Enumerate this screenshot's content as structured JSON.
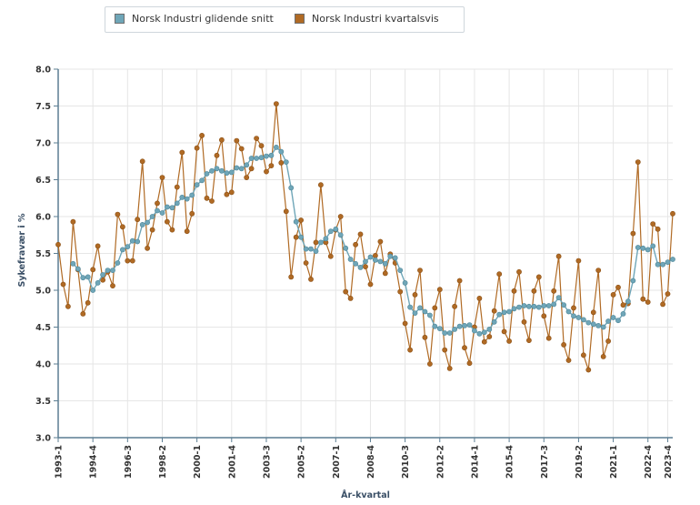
{
  "legend": {
    "items": [
      {
        "label": "Norsk Industri glidende snitt",
        "color": "#6fa6b8"
      },
      {
        "label": "Norsk Industri kvartalsvis",
        "color": "#b06a24"
      }
    ]
  },
  "chart_data": {
    "type": "line",
    "xlabel": "År-kvartal",
    "ylabel": "Sykefravær i %",
    "ylim": [
      3.0,
      8.0
    ],
    "yticks": [
      "3.0",
      "3.5",
      "4.0",
      "4.5",
      "5.0",
      "5.5",
      "6.0",
      "6.5",
      "7.0",
      "7.5",
      "8.0"
    ],
    "xtick_labels": [
      "1993-1",
      "1994-4",
      "1996-3",
      "1998-2",
      "2000-1",
      "2001-4",
      "2003-3",
      "2005-2",
      "2007-1",
      "2008-4",
      "2010-3",
      "2012-2",
      "2014-1",
      "2015-4",
      "2017-3",
      "2019-2",
      "2021-1",
      "2022-4",
      "2023-4"
    ],
    "grid": true,
    "legend_position": "top-left",
    "x_start": "1993-1",
    "series": [
      {
        "name": "Norsk Industri kvartalsvis",
        "color": "#b06a24",
        "values": [
          5.62,
          5.08,
          4.78,
          5.93,
          5.28,
          4.68,
          4.83,
          5.28,
          5.6,
          5.14,
          5.25,
          5.06,
          6.03,
          5.86,
          5.4,
          5.4,
          5.96,
          6.75,
          5.57,
          5.82,
          6.18,
          6.53,
          5.93,
          5.82,
          6.4,
          6.87,
          5.8,
          6.04,
          6.93,
          7.1,
          6.25,
          6.21,
          6.83,
          7.04,
          6.3,
          6.33,
          7.03,
          6.92,
          6.53,
          6.65,
          7.06,
          6.96,
          6.61,
          6.69,
          7.53,
          6.73,
          6.07,
          5.18,
          5.72,
          5.95,
          5.37,
          5.15,
          5.65,
          6.43,
          5.65,
          5.46,
          5.82,
          6.0,
          4.98,
          4.89,
          5.62,
          5.76,
          5.32,
          5.08,
          5.47,
          5.66,
          5.23,
          5.49,
          5.37,
          4.98,
          4.55,
          4.19,
          4.94,
          5.27,
          4.36,
          4.0,
          4.76,
          5.01,
          4.19,
          3.94,
          4.78,
          5.13,
          4.22,
          4.01,
          4.5,
          4.89,
          4.3,
          4.37,
          4.72,
          5.22,
          4.44,
          4.31,
          4.99,
          5.25,
          4.57,
          4.32,
          4.99,
          5.18,
          4.65,
          4.35,
          4.99,
          5.46,
          4.26,
          4.05,
          4.76,
          5.4,
          4.12,
          3.92,
          4.7,
          5.27,
          4.1,
          4.31,
          4.94,
          5.04,
          4.8,
          4.82,
          5.77,
          6.74,
          4.88,
          4.84,
          5.9,
          5.83,
          4.81,
          4.95,
          6.04
        ]
      },
      {
        "name": "Norsk Industri glidende snitt",
        "color": "#6fa6b8",
        "values": [
          null,
          null,
          null,
          5.36,
          5.29,
          5.17,
          5.18,
          5.0,
          5.1,
          5.21,
          5.27,
          5.27,
          5.37,
          5.55,
          5.59,
          5.67,
          5.66,
          5.89,
          5.92,
          6.0,
          6.08,
          6.05,
          6.13,
          6.12,
          6.18,
          6.26,
          6.24,
          6.29,
          6.43,
          6.49,
          6.58,
          6.62,
          6.65,
          6.62,
          6.59,
          6.6,
          6.66,
          6.65,
          6.7,
          6.79,
          6.79,
          6.8,
          6.82,
          6.83,
          6.94,
          6.88,
          6.74,
          6.39,
          5.93,
          5.72,
          5.56,
          5.56,
          5.53,
          5.65,
          5.7,
          5.8,
          5.83,
          5.75,
          5.57,
          5.42,
          5.36,
          5.31,
          5.39,
          5.45,
          5.41,
          5.39,
          5.36,
          5.46,
          5.44,
          5.27,
          5.1,
          4.77,
          4.69,
          4.76,
          4.71,
          4.66,
          4.51,
          4.48,
          4.42,
          4.42,
          4.47,
          4.51,
          4.52,
          4.53,
          4.45,
          4.41,
          4.43,
          4.47,
          4.57,
          4.67,
          4.7,
          4.71,
          4.75,
          4.77,
          4.79,
          4.78,
          4.78,
          4.77,
          4.79,
          4.79,
          4.81,
          4.9,
          4.8,
          4.71,
          4.65,
          4.63,
          4.6,
          4.56,
          4.54,
          4.52,
          4.5,
          4.58,
          4.63,
          4.59,
          4.68,
          4.85,
          5.13,
          5.58,
          5.57,
          5.55,
          5.6,
          5.35,
          5.35,
          5.38,
          5.42
        ]
      }
    ]
  }
}
